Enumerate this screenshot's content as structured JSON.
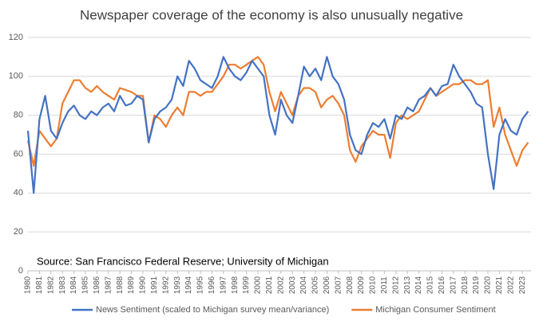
{
  "chart_data": {
    "type": "line",
    "title": "Newspaper coverage of the economy is also unusually negative",
    "annotation": "Source: San Francisco Federal Reserve; University of Michigan",
    "x": [
      1980,
      1980.5,
      1981,
      1981.5,
      1982,
      1982.5,
      1983,
      1983.5,
      1984,
      1984.5,
      1985,
      1985.5,
      1986,
      1986.5,
      1987,
      1987.5,
      1988,
      1988.5,
      1989,
      1989.5,
      1990,
      1990.5,
      1991,
      1991.5,
      1992,
      1992.5,
      1993,
      1993.5,
      1994,
      1994.5,
      1995,
      1995.5,
      1996,
      1996.5,
      1997,
      1997.5,
      1998,
      1998.5,
      1999,
      1999.5,
      2000,
      2000.5,
      2001,
      2001.5,
      2002,
      2002.5,
      2003,
      2003.5,
      2004,
      2004.5,
      2005,
      2005.5,
      2006,
      2006.5,
      2007,
      2007.5,
      2008,
      2008.5,
      2009,
      2009.5,
      2010,
      2010.5,
      2011,
      2011.5,
      2012,
      2012.5,
      2013,
      2013.5,
      2014,
      2014.5,
      2015,
      2015.5,
      2016,
      2016.5,
      2017,
      2017.5,
      2018,
      2018.5,
      2019,
      2019.5,
      2020,
      2020.5,
      2021,
      2021.5,
      2022,
      2022.5,
      2023,
      2023.5
    ],
    "series": [
      {
        "name": "News Sentiment (scaled to Michigan survey mean/variance)",
        "color": "#4472c4",
        "values": [
          72,
          40,
          78,
          90,
          72,
          68,
          76,
          82,
          85,
          80,
          78,
          82,
          80,
          84,
          86,
          82,
          90,
          85,
          86,
          90,
          88,
          66,
          78,
          82,
          84,
          88,
          100,
          95,
          108,
          104,
          98,
          96,
          94,
          100,
          110,
          104,
          100,
          98,
          102,
          108,
          104,
          100,
          80,
          70,
          88,
          80,
          76,
          90,
          105,
          100,
          104,
          98,
          110,
          100,
          96,
          88,
          70,
          62,
          60,
          70,
          76,
          74,
          78,
          68,
          80,
          78,
          84,
          82,
          88,
          90,
          94,
          90,
          95,
          96,
          106,
          100,
          96,
          92,
          86,
          84,
          60,
          42,
          70,
          78,
          72,
          70,
          78,
          82
        ]
      },
      {
        "name": "Michigan Consumer Sentiment",
        "color": "#ed7d31",
        "values": [
          67,
          54,
          72,
          68,
          64,
          68,
          86,
          92,
          98,
          98,
          94,
          92,
          95,
          92,
          90,
          88,
          94,
          93,
          92,
          90,
          90,
          66,
          80,
          78,
          74,
          80,
          84,
          80,
          92,
          92,
          90,
          92,
          92,
          96,
          100,
          106,
          106,
          104,
          106,
          108,
          110,
          106,
          92,
          82,
          92,
          86,
          80,
          90,
          94,
          94,
          92,
          84,
          88,
          90,
          86,
          80,
          62,
          56,
          64,
          68,
          72,
          70,
          70,
          58,
          76,
          80,
          78,
          80,
          82,
          88,
          94,
          90,
          92,
          94,
          96,
          96,
          98,
          98,
          96,
          96,
          98,
          74,
          84,
          70,
          62,
          54,
          62,
          66
        ]
      }
    ],
    "xlim": [
      1980,
      2023.75
    ],
    "xticks": [
      1980,
      1981,
      1982,
      1983,
      1984,
      1985,
      1986,
      1987,
      1988,
      1989,
      1990,
      1991,
      1992,
      1993,
      1994,
      1995,
      1996,
      1997,
      1998,
      1999,
      2000,
      2001,
      2002,
      2003,
      2004,
      2005,
      2006,
      2007,
      2008,
      2009,
      2010,
      2011,
      2012,
      2013,
      2014,
      2015,
      2016,
      2017,
      2018,
      2019,
      2020,
      2021,
      2022,
      2023
    ],
    "ylim": [
      0,
      120
    ],
    "yticks": [
      0,
      20,
      40,
      60,
      80,
      100,
      120
    ],
    "grid": true,
    "legend": "bottom"
  }
}
